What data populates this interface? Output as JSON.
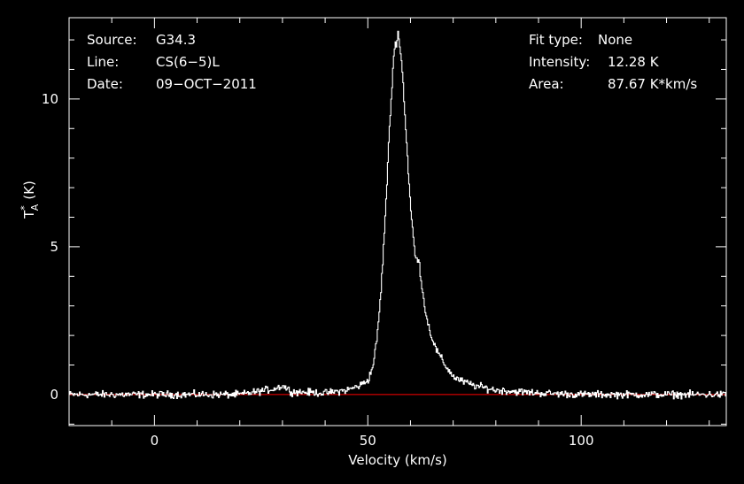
{
  "header": {
    "left": [
      {
        "key": "Source:",
        "value": "G34.3"
      },
      {
        "key": "Line:",
        "value": "CS(6−5)L"
      },
      {
        "key": "Date:",
        "value": "09−OCT−2011"
      }
    ],
    "right": [
      {
        "key": "Fit type:",
        "value": "None"
      },
      {
        "key": "Intensity:",
        "value": "12.28 K"
      },
      {
        "key": "Area:",
        "value": "87.67 K*km/s"
      }
    ]
  },
  "colors": {
    "background": "#000000",
    "foreground": "#ffffff",
    "baseline": "#ff0000"
  },
  "chart_data": {
    "type": "line",
    "xlabel": "Velocity (km/s)",
    "ylabel_main": "T",
    "ylabel_sup": "*",
    "ylabel_sub": "A",
    "ylabel_unit": "(K)",
    "xlim": [
      -20,
      134
    ],
    "ylim": [
      -1.05,
      12.75
    ],
    "xticks": [
      0,
      50,
      100
    ],
    "xtick_labels": [
      "0",
      "50",
      "100"
    ],
    "yticks": [
      0,
      5,
      10
    ],
    "ytick_labels": [
      "0",
      "5",
      "10"
    ],
    "baseline_y": 0,
    "grid": false,
    "series": [
      {
        "x": [
          -20,
          -10,
          0,
          10,
          20,
          28,
          30,
          32,
          40,
          45,
          48,
          50,
          51,
          52,
          53,
          54,
          55,
          56,
          57,
          58,
          59,
          60,
          61,
          62,
          63,
          64,
          65,
          66,
          68,
          70,
          72,
          75,
          80,
          90,
          100,
          110,
          120,
          134
        ],
        "y": [
          0.0,
          0.0,
          0.0,
          0.0,
          0.0,
          0.2,
          0.3,
          0.1,
          0.05,
          0.15,
          0.3,
          0.5,
          0.9,
          1.8,
          3.5,
          6.0,
          9.0,
          11.5,
          12.28,
          11.0,
          8.5,
          6.2,
          4.7,
          4.4,
          3.2,
          2.4,
          1.9,
          1.5,
          1.0,
          0.6,
          0.45,
          0.3,
          0.15,
          0.05,
          0.0,
          0.0,
          0.0,
          0.0
        ],
        "noise": 0.12
      }
    ]
  }
}
